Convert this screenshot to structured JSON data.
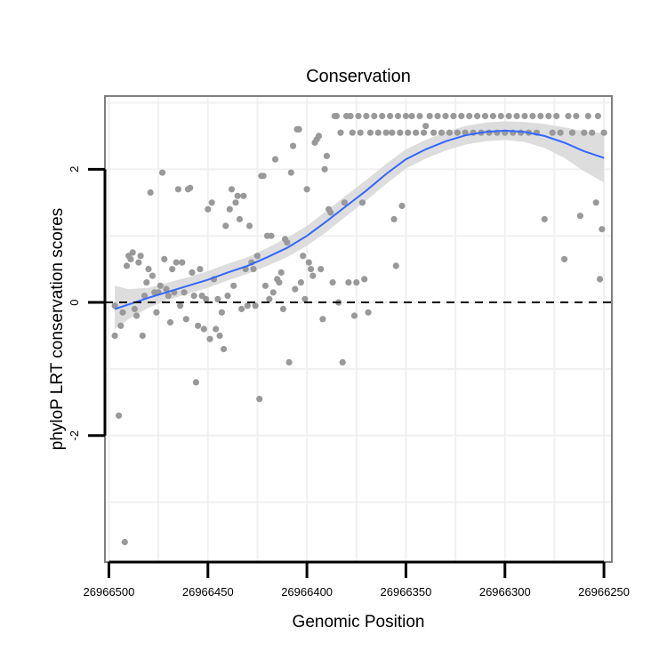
{
  "chart_data": {
    "type": "scatter",
    "title": "Conservation",
    "xlabel": "Genomic Position",
    "ylabel": "phyloP LRT conservation scores",
    "x_reversed": true,
    "xlim": [
      26966502,
      26966246
    ],
    "ylim": [
      -3.9,
      3.1
    ],
    "x_ticks": [
      26966500,
      26966450,
      26966400,
      26966350,
      26966300,
      26966250
    ],
    "x_tick_labels": [
      "26966500",
      "26966450",
      "26966400",
      "26966350",
      "26966300",
      "26966250"
    ],
    "y_ticks": [
      -2,
      0,
      2
    ],
    "y_tick_labels": [
      "-2",
      "0",
      "2"
    ],
    "reference_line": {
      "y": 0,
      "style": "dashed"
    },
    "colors": {
      "points": "#999999",
      "smooth": "#3366ff",
      "ribbon": "#d9d9d9",
      "panel_border": "#7f7f7f",
      "grid": "#f0f0f0"
    },
    "points": [
      [
        26966497,
        -0.05
      ],
      [
        26966497,
        -0.5
      ],
      [
        26966495,
        -1.7
      ],
      [
        26966494,
        -0.35
      ],
      [
        26966493,
        -0.15
      ],
      [
        26966492,
        -3.6
      ],
      [
        26966491,
        0.55
      ],
      [
        26966490,
        0.7
      ],
      [
        26966489,
        0.65
      ],
      [
        26966488,
        0.75
      ],
      [
        26966487,
        -0.1
      ],
      [
        26966486,
        -0.2
      ],
      [
        26966485,
        0.6
      ],
      [
        26966484,
        0.7
      ],
      [
        26966483,
        -0.5
      ],
      [
        26966482,
        0.1
      ],
      [
        26966481,
        0.3
      ],
      [
        26966480,
        0.5
      ],
      [
        26966479,
        1.65
      ],
      [
        26966478,
        0.4
      ],
      [
        26966477,
        0.15
      ],
      [
        26966476,
        -0.15
      ],
      [
        26966475,
        0.15
      ],
      [
        26966474,
        0.25
      ],
      [
        26966473,
        1.95
      ],
      [
        26966472,
        0.65
      ],
      [
        26966471,
        0.2
      ],
      [
        26966470,
        0.1
      ],
      [
        26966469,
        -0.3
      ],
      [
        26966468,
        0.5
      ],
      [
        26966467,
        0.15
      ],
      [
        26966466,
        0.6
      ],
      [
        26966465,
        1.7
      ],
      [
        26966464,
        -0.05
      ],
      [
        26966463,
        0.6
      ],
      [
        26966462,
        0.15
      ],
      [
        26966461,
        -0.25
      ],
      [
        26966460,
        1.7
      ],
      [
        26966459,
        1.72
      ],
      [
        26966458,
        0.45
      ],
      [
        26966457,
        0.1
      ],
      [
        26966456,
        -1.2
      ],
      [
        26966455,
        -0.35
      ],
      [
        26966454,
        0.5
      ],
      [
        26966453,
        0.1
      ],
      [
        26966452,
        -0.4
      ],
      [
        26966451,
        0.05
      ],
      [
        26966450,
        1.4
      ],
      [
        26966449,
        -0.55
      ],
      [
        26966448,
        1.5
      ],
      [
        26966447,
        0.35
      ],
      [
        26966446,
        -0.4
      ],
      [
        26966445,
        0.05
      ],
      [
        26966444,
        -0.5
      ],
      [
        26966443,
        -0.15
      ],
      [
        26966442,
        -0.7
      ],
      [
        26966441,
        1.15
      ],
      [
        26966440,
        0.1
      ],
      [
        26966439,
        1.4
      ],
      [
        26966438,
        1.7
      ],
      [
        26966437,
        0.25
      ],
      [
        26966436,
        1.5
      ],
      [
        26966435,
        1.6
      ],
      [
        26966434,
        1.25
      ],
      [
        26966433,
        -0.1
      ],
      [
        26966432,
        1.6
      ],
      [
        26966431,
        0.5
      ],
      [
        26966430,
        -0.05
      ],
      [
        26966429,
        1.15
      ],
      [
        26966428,
        0.6
      ],
      [
        26966427,
        0.5
      ],
      [
        26966426,
        -0.05
      ],
      [
        26966425,
        0.7
      ],
      [
        26966424,
        -1.45
      ],
      [
        26966423,
        1.9
      ],
      [
        26966422,
        1.9
      ],
      [
        26966421,
        0.25
      ],
      [
        26966420,
        1.0
      ],
      [
        26966419,
        0.05
      ],
      [
        26966418,
        1.0
      ],
      [
        26966417,
        0.15
      ],
      [
        26966416,
        2.15
      ],
      [
        26966415,
        0.35
      ],
      [
        26966414,
        0.3
      ],
      [
        26966413,
        0.45
      ],
      [
        26966412,
        -0.1
      ],
      [
        26966411,
        0.95
      ],
      [
        26966410,
        0.9
      ],
      [
        26966409,
        -0.9
      ],
      [
        26966408,
        1.95
      ],
      [
        26966407,
        2.35
      ],
      [
        26966406,
        0.2
      ],
      [
        26966405,
        2.6
      ],
      [
        26966404,
        2.6
      ],
      [
        26966403,
        0.3
      ],
      [
        26966402,
        0.7
      ],
      [
        26966401,
        0.05
      ],
      [
        26966400,
        1.7
      ],
      [
        26966399,
        0.6
      ],
      [
        26966398,
        0.5
      ],
      [
        26966397,
        0.4
      ],
      [
        26966396,
        2.4
      ],
      [
        26966395,
        2.45
      ],
      [
        26966394,
        2.5
      ],
      [
        26966393,
        0.5
      ],
      [
        26966392,
        -0.25
      ],
      [
        26966391,
        2.0
      ],
      [
        26966390,
        2.2
      ],
      [
        26966389,
        1.4
      ],
      [
        26966388,
        1.35
      ],
      [
        26966387,
        0.3
      ],
      [
        26966386,
        2.8
      ],
      [
        26966385,
        2.8
      ],
      [
        26966384,
        0.0
      ],
      [
        26966383,
        2.55
      ],
      [
        26966382,
        -0.9
      ],
      [
        26966381,
        1.5
      ],
      [
        26966380,
        2.8
      ],
      [
        26966379,
        0.3
      ],
      [
        26966378,
        2.8
      ],
      [
        26966377,
        2.55
      ],
      [
        26966376,
        -0.2
      ],
      [
        26966375,
        0.3
      ],
      [
        26966374,
        2.8
      ],
      [
        26966373,
        2.55
      ],
      [
        26966372,
        1.5
      ],
      [
        26966371,
        0.35
      ],
      [
        26966370,
        2.8
      ],
      [
        26966369,
        -0.15
      ],
      [
        26966368,
        2.55
      ],
      [
        26966366,
        2.8
      ],
      [
        26966364,
        2.55
      ],
      [
        26966362,
        2.8
      ],
      [
        26966360,
        2.55
      ],
      [
        26966358,
        2.8
      ],
      [
        26966357,
        2.55
      ],
      [
        26966356,
        1.25
      ],
      [
        26966355,
        0.55
      ],
      [
        26966354,
        2.8
      ],
      [
        26966353,
        2.55
      ],
      [
        26966352,
        1.45
      ],
      [
        26966350,
        2.8
      ],
      [
        26966349,
        2.55
      ],
      [
        26966347,
        2.8
      ],
      [
        26966345,
        2.55
      ],
      [
        26966343,
        2.8
      ],
      [
        26966341,
        2.55
      ],
      [
        26966340,
        2.65
      ],
      [
        26966338,
        2.8
      ],
      [
        26966336,
        2.55
      ],
      [
        26966334,
        2.8
      ],
      [
        26966332,
        2.55
      ],
      [
        26966330,
        2.8
      ],
      [
        26966328,
        2.55
      ],
      [
        26966326,
        2.8
      ],
      [
        26966324,
        2.55
      ],
      [
        26966322,
        2.8
      ],
      [
        26966320,
        2.55
      ],
      [
        26966318,
        2.8
      ],
      [
        26966316,
        2.55
      ],
      [
        26966314,
        2.8
      ],
      [
        26966312,
        2.55
      ],
      [
        26966310,
        2.8
      ],
      [
        26966308,
        2.55
      ],
      [
        26966306,
        2.8
      ],
      [
        26966304,
        2.55
      ],
      [
        26966302,
        2.8
      ],
      [
        26966300,
        2.55
      ],
      [
        26966298,
        2.8
      ],
      [
        26966296,
        2.55
      ],
      [
        26966294,
        2.8
      ],
      [
        26966292,
        2.55
      ],
      [
        26966290,
        2.8
      ],
      [
        26966288,
        2.55
      ],
      [
        26966286,
        2.8
      ],
      [
        26966284,
        2.55
      ],
      [
        26966282,
        2.8
      ],
      [
        26966280,
        1.25
      ],
      [
        26966278,
        2.8
      ],
      [
        26966276,
        2.55
      ],
      [
        26966274,
        2.8
      ],
      [
        26966272,
        2.55
      ],
      [
        26966270,
        0.65
      ],
      [
        26966268,
        2.8
      ],
      [
        26966266,
        2.55
      ],
      [
        26966264,
        2.8
      ],
      [
        26966262,
        1.3
      ],
      [
        26966260,
        2.55
      ],
      [
        26966258,
        2.8
      ],
      [
        26966256,
        2.55
      ],
      [
        26966254,
        1.5
      ],
      [
        26966253,
        2.8
      ],
      [
        26966252,
        0.35
      ],
      [
        26966251,
        1.1
      ],
      [
        26966250,
        2.55
      ]
    ],
    "smooth": [
      {
        "x": 26966497,
        "y": -0.1,
        "lo": -0.4,
        "hi": 0.25
      },
      {
        "x": 26966490,
        "y": -0.03,
        "lo": -0.25,
        "hi": 0.2
      },
      {
        "x": 26966480,
        "y": 0.07,
        "lo": -0.08,
        "hi": 0.22
      },
      {
        "x": 26966470,
        "y": 0.16,
        "lo": 0.04,
        "hi": 0.3
      },
      {
        "x": 26966460,
        "y": 0.25,
        "lo": 0.13,
        "hi": 0.38
      },
      {
        "x": 26966450,
        "y": 0.34,
        "lo": 0.22,
        "hi": 0.47
      },
      {
        "x": 26966440,
        "y": 0.45,
        "lo": 0.33,
        "hi": 0.58
      },
      {
        "x": 26966430,
        "y": 0.55,
        "lo": 0.43,
        "hi": 0.68
      },
      {
        "x": 26966420,
        "y": 0.68,
        "lo": 0.55,
        "hi": 0.82
      },
      {
        "x": 26966410,
        "y": 0.82,
        "lo": 0.68,
        "hi": 0.97
      },
      {
        "x": 26966400,
        "y": 1.0,
        "lo": 0.85,
        "hi": 1.15
      },
      {
        "x": 26966390,
        "y": 1.22,
        "lo": 1.06,
        "hi": 1.38
      },
      {
        "x": 26966380,
        "y": 1.45,
        "lo": 1.3,
        "hi": 1.61
      },
      {
        "x": 26966370,
        "y": 1.68,
        "lo": 1.53,
        "hi": 1.84
      },
      {
        "x": 26966360,
        "y": 1.93,
        "lo": 1.78,
        "hi": 2.08
      },
      {
        "x": 26966350,
        "y": 2.15,
        "lo": 2.01,
        "hi": 2.3
      },
      {
        "x": 26966340,
        "y": 2.3,
        "lo": 2.16,
        "hi": 2.44
      },
      {
        "x": 26966330,
        "y": 2.42,
        "lo": 2.28,
        "hi": 2.56
      },
      {
        "x": 26966320,
        "y": 2.51,
        "lo": 2.37,
        "hi": 2.65
      },
      {
        "x": 26966310,
        "y": 2.56,
        "lo": 2.42,
        "hi": 2.7
      },
      {
        "x": 26966300,
        "y": 2.58,
        "lo": 2.44,
        "hi": 2.72
      },
      {
        "x": 26966290,
        "y": 2.56,
        "lo": 2.41,
        "hi": 2.71
      },
      {
        "x": 26966280,
        "y": 2.5,
        "lo": 2.32,
        "hi": 2.68
      },
      {
        "x": 26966270,
        "y": 2.4,
        "lo": 2.17,
        "hi": 2.63
      },
      {
        "x": 26966260,
        "y": 2.27,
        "lo": 1.97,
        "hi": 2.57
      },
      {
        "x": 26966250,
        "y": 2.17,
        "lo": 1.8,
        "hi": 2.54
      }
    ]
  }
}
